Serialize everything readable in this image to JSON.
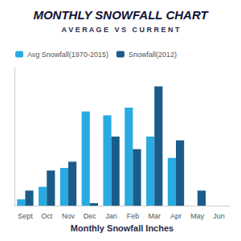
{
  "chart_data": {
    "type": "bar",
    "title": "MONTHLY SNOWFALL CHART",
    "subtitle": "A V E R A G E   V S   C U R R E N T",
    "x_label": "Monthly Snowfall Inches",
    "categories": [
      "Sept",
      "Oct",
      "Nov",
      "Dec",
      "Jan",
      "Feb",
      "Mar",
      "Apr",
      "May",
      "Jun"
    ],
    "series": [
      {
        "name": "Avg Snowfall(1970-2015)",
        "color": "#29ABE2",
        "values": [
          0.5,
          1.5,
          3.0,
          7.5,
          7.2,
          7.8,
          5.5,
          3.8,
          0.0,
          0.0
        ]
      },
      {
        "name": "Snowfall(2012)",
        "color": "#1A5C8A",
        "values": [
          1.2,
          2.8,
          3.5,
          0.2,
          5.5,
          4.5,
          9.5,
          5.2,
          1.2,
          0.0
        ]
      }
    ],
    "ylim": [
      0,
      11
    ],
    "grid": false,
    "legend": "upper left",
    "tick_labels": "x"
  }
}
